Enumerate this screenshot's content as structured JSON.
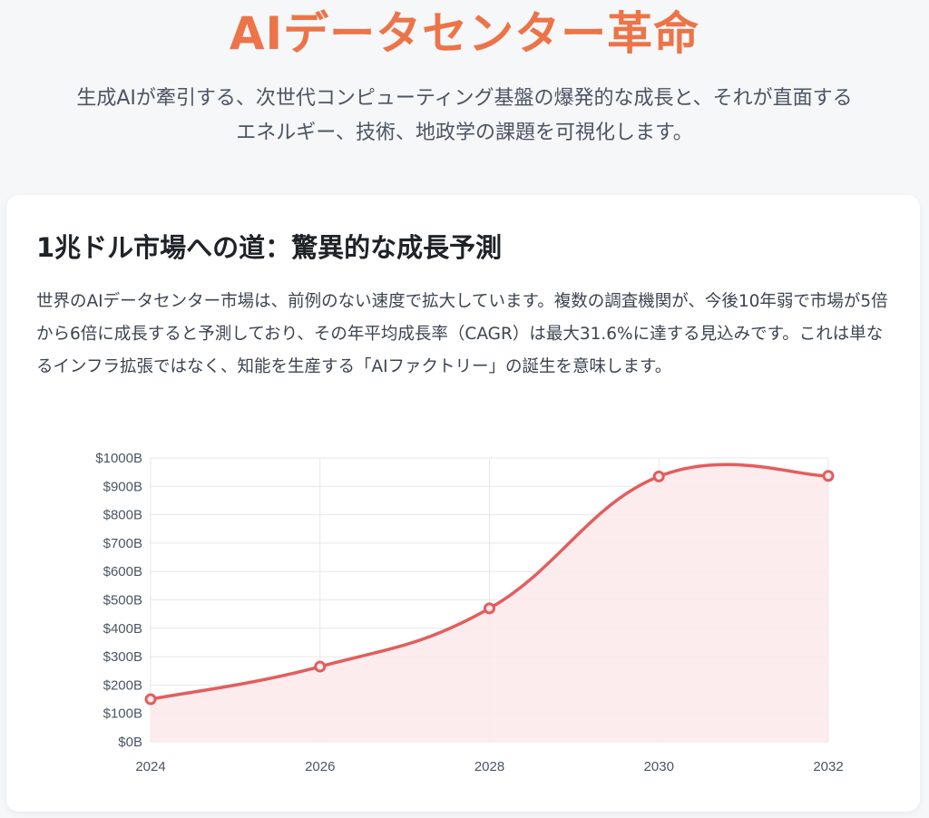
{
  "header": {
    "title": "AIデータセンター革命",
    "subtitle_line1": "生成AIが牽引する、次世代コンピューティング基盤の爆発的な成長と、それが直面する",
    "subtitle_line2": "エネルギー、技術、地政学の課題を可視化します。"
  },
  "card": {
    "title": "1兆ドル市場への道：驚異的な成長予測",
    "description": "世界のAIデータセンター市場は、前例のない速度で拡大しています。複数の調査機関が、今後10年弱で市場が5倍から6倍に成長すると予測しており、その年平均成長率（CAGR）は最大31.6%に達する見込みです。これは単なるインフラ拡張ではなく、知能を生産する「AIファクトリー」の誕生を意味します。"
  },
  "colors": {
    "title_accent": "#ec7448",
    "line": "#e35d5d",
    "fill": "#fde9ea",
    "grid": "#e5e7eb"
  },
  "chart_data": {
    "type": "area",
    "x": [
      2024,
      2026,
      2028,
      2030,
      2032
    ],
    "values": [
      150,
      265,
      470,
      935,
      937
    ],
    "ylim": [
      0,
      1000
    ],
    "y_ticks": [
      0,
      100,
      200,
      300,
      400,
      500,
      600,
      700,
      800,
      900,
      1000
    ],
    "y_tick_labels": [
      "$0B",
      "$100B",
      "$200B",
      "$300B",
      "$400B",
      "$500B",
      "$600B",
      "$700B",
      "$800B",
      "$900B",
      "$1000B"
    ],
    "x_tick_labels": [
      "2024",
      "2026",
      "2028",
      "2030",
      "2032"
    ],
    "grid": true,
    "legend": "none"
  }
}
